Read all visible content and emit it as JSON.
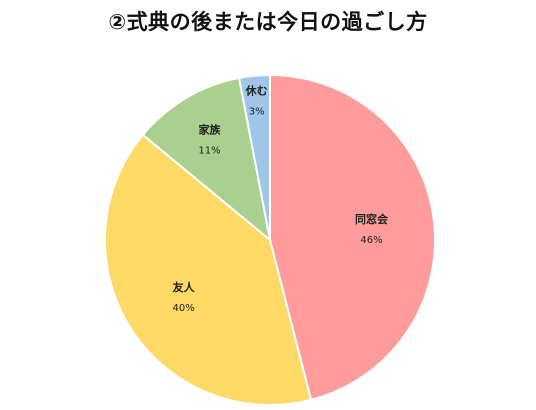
{
  "chart_data": {
    "type": "pie",
    "title": "②式典の後または今日の過ごし方",
    "categories": [
      "同窓会",
      "友人",
      "家族",
      "休む"
    ],
    "values": [
      46,
      40,
      11,
      3
    ],
    "value_labels": [
      "46%",
      "40%",
      "11%",
      "3%"
    ],
    "colors": [
      "#ff9b9b",
      "#ffd966",
      "#a9d08e",
      "#9fc5e8"
    ],
    "start": "12 o'clock",
    "direction": "clockwise"
  }
}
